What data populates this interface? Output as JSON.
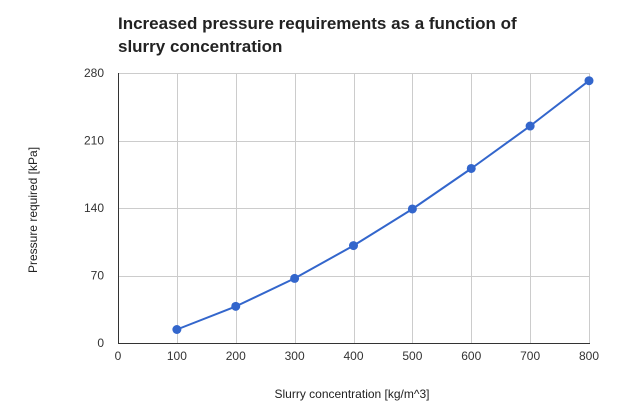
{
  "chart_data": {
    "type": "line",
    "title": "Increased pressure requirements as a function of slurry concentration",
    "xlabel": "Slurry concentration [kg/m^3]",
    "ylabel": "Pressure required [kPa]",
    "xlim": [
      0,
      800
    ],
    "ylim": [
      0,
      280
    ],
    "x_ticks": [
      0,
      100,
      200,
      300,
      400,
      500,
      600,
      700,
      800
    ],
    "y_ticks": [
      0,
      70,
      140,
      210,
      280
    ],
    "grid": true,
    "legend": "none",
    "series": [
      {
        "x": [
          100,
          200,
          300,
          400,
          500,
          600,
          700,
          800
        ],
        "y": [
          14,
          38,
          67,
          101,
          139,
          181,
          225,
          272
        ],
        "color": "#3366cc"
      }
    ]
  }
}
